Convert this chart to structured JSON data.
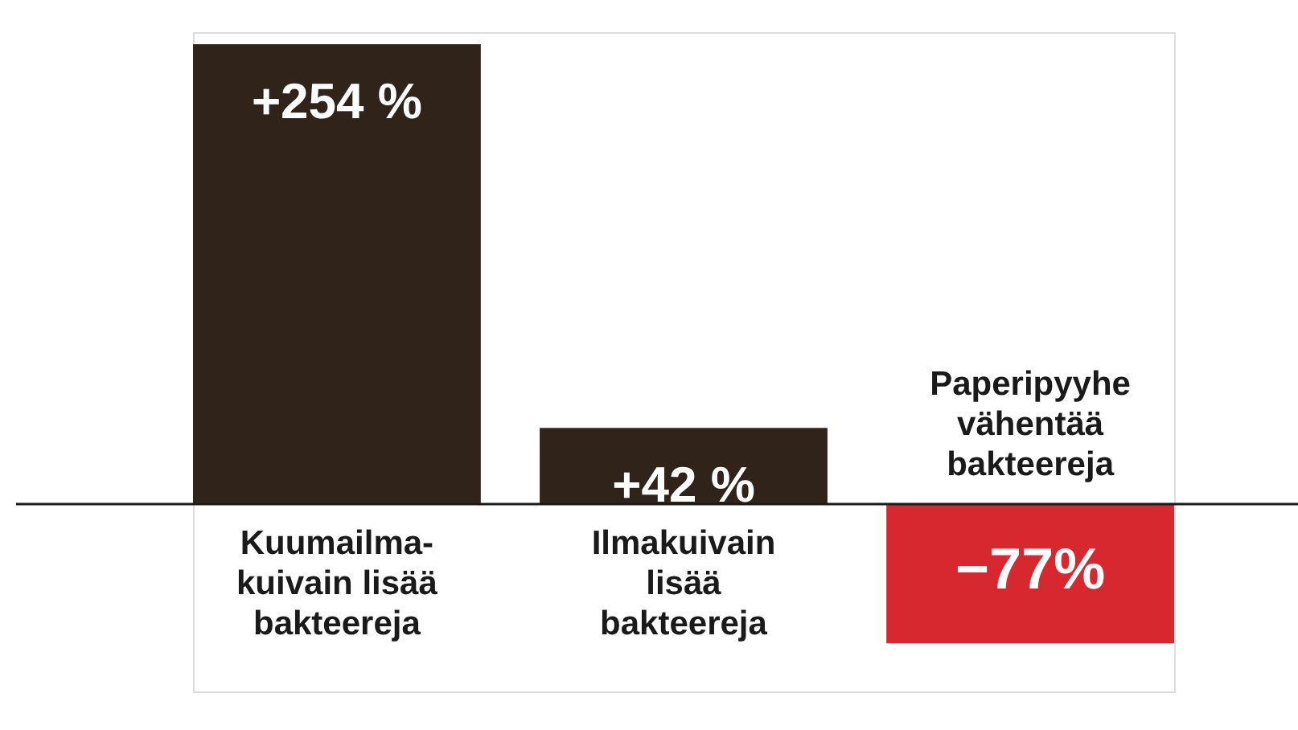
{
  "chart_data": {
    "type": "bar",
    "categories": [
      "Kuumailma-\nkuivain lisää\nbakteereja",
      "Ilmakuivain\nlisää\nbakteereja",
      "Paperipyyhe\nvähentää\nbakteereja"
    ],
    "values": [
      254,
      42,
      -77
    ],
    "colors": [
      "#30231a",
      "#30231a",
      "#d7282f"
    ],
    "value_labels": [
      "+254 %",
      "+42 %",
      "−77%"
    ],
    "tick_labels": false
  }
}
